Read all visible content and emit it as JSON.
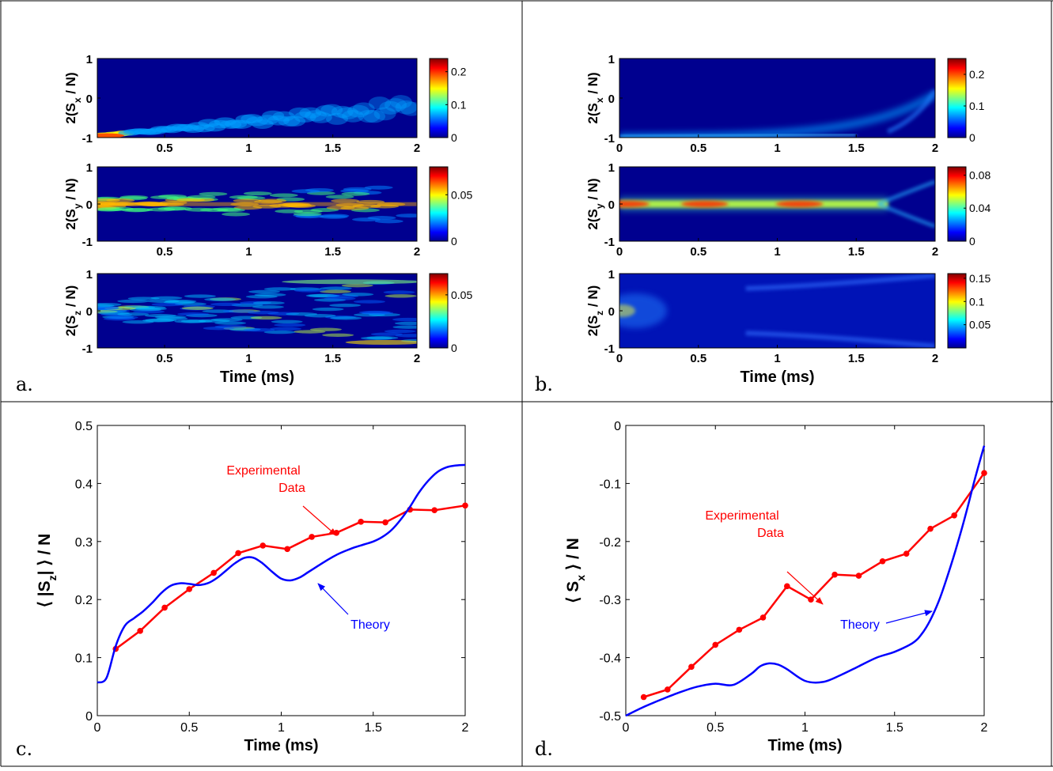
{
  "colors": {
    "border": "#000000",
    "experimental": "#ff0000",
    "theory": "#0000ff",
    "heatmap_bg": "#00008f",
    "colormap": [
      "#00008f",
      "#0000ff",
      "#00ffff",
      "#ffff00",
      "#ff0000",
      "#800000"
    ]
  },
  "panel_labels": {
    "a": "a.",
    "b": "b.",
    "c": "c.",
    "d": "d."
  },
  "chart_data": [
    {
      "id": "a",
      "type": "heatmap",
      "xlabel": "Time (ms)",
      "xlim": [
        0.1,
        2
      ],
      "xticks": [
        "0.5",
        "1",
        "1.5",
        "2"
      ],
      "xtick_values": [
        0.5,
        1,
        1.5,
        2
      ],
      "subplots": [
        {
          "ylabel": "2(S_x / N)",
          "ylabel_main": "2(S",
          "ylabel_sub": "x",
          "ylabel_tail": " / N)",
          "yticks": [
            "1",
            "0",
            "-1"
          ],
          "ylim": [
            -1,
            1
          ],
          "colorbar": {
            "range": [
              0,
              0.24
            ],
            "ticks": [
              "0.2",
              "0.1",
              "0"
            ],
            "tick_values": [
              0.2,
              0.1,
              0
            ]
          },
          "pattern": "spreading-from-bottom"
        },
        {
          "ylabel": "2(S_y / N)",
          "ylabel_main": "2(S",
          "ylabel_sub": "y",
          "ylabel_tail": " / N)",
          "yticks": [
            "1",
            "0",
            "-1"
          ],
          "ylim": [
            -1,
            1
          ],
          "colorbar": {
            "range": [
              0,
              0.08
            ],
            "ticks": [
              "0.05",
              "0"
            ],
            "tick_values": [
              0.05,
              0
            ]
          },
          "pattern": "band-at-zero-noisy"
        },
        {
          "ylabel": "2(S_z / N)",
          "ylabel_main": "2(S",
          "ylabel_sub": "z",
          "ylabel_tail": " / N)",
          "yticks": [
            "1",
            "0",
            "-1"
          ],
          "ylim": [
            -1,
            1
          ],
          "colorbar": {
            "range": [
              0,
              0.07
            ],
            "ticks": [
              "0.05",
              "0"
            ],
            "tick_values": [
              0.05,
              0
            ]
          },
          "pattern": "spreading-to-edges-noisy"
        }
      ]
    },
    {
      "id": "b",
      "type": "heatmap",
      "xlabel": "Time (ms)",
      "xlim": [
        0,
        2
      ],
      "xticks": [
        "0",
        "0.5",
        "1",
        "1.5",
        "2"
      ],
      "xtick_values": [
        0,
        0.5,
        1,
        1.5,
        2
      ],
      "subplots": [
        {
          "ylabel": "2(S_x / N)",
          "ylabel_main": "2(S",
          "ylabel_sub": "x",
          "ylabel_tail": " / N)",
          "yticks": [
            "1",
            "0",
            "-1"
          ],
          "ylim": [
            -1,
            1
          ],
          "colorbar": {
            "range": [
              0,
              0.25
            ],
            "ticks": [
              "0.2",
              "0.1",
              "0"
            ],
            "tick_values": [
              0.2,
              0.1,
              0
            ]
          },
          "pattern": "smooth-bottom-rising"
        },
        {
          "ylabel": "2(S_y / N)",
          "ylabel_main": "2(S",
          "ylabel_sub": "y",
          "ylabel_tail": " / N)",
          "yticks": [
            "1",
            "0",
            "-1"
          ],
          "ylim": [
            -1,
            1
          ],
          "colorbar": {
            "range": [
              0,
              0.09
            ],
            "ticks": [
              "0.08",
              "0.04",
              "0"
            ],
            "tick_values": [
              0.08,
              0.04,
              0
            ]
          },
          "pattern": "smooth-band-at-zero"
        },
        {
          "ylabel": "2(S_z / N)",
          "ylabel_main": "2(S",
          "ylabel_sub": "z",
          "ylabel_tail": " / N)",
          "yticks": [
            "1",
            "0",
            "-1"
          ],
          "ylim": [
            -1,
            1
          ],
          "colorbar": {
            "range": [
              0,
              0.16
            ],
            "ticks": [
              "0.15",
              "0.1",
              "0.05"
            ],
            "tick_values": [
              0.15,
              0.1,
              0.05
            ]
          },
          "pattern": "smooth-spread"
        }
      ]
    },
    {
      "id": "c",
      "type": "line",
      "xlabel": "Time (ms)",
      "ylabel": "⟨ |S_z| ⟩ / N",
      "ylabel_parts": {
        "open": "⟨ |S",
        "sub": "z",
        "close": "| ⟩ / N"
      },
      "xlim": [
        0,
        2
      ],
      "ylim": [
        0,
        0.5
      ],
      "xticks": [
        "0",
        "0.5",
        "1",
        "1.5",
        "2"
      ],
      "xtick_values": [
        0,
        0.5,
        1,
        1.5,
        2
      ],
      "yticks": [
        "0",
        "0.1",
        "0.2",
        "0.3",
        "0.4",
        "0.5"
      ],
      "ytick_values": [
        0,
        0.1,
        0.2,
        0.3,
        0.4,
        0.5
      ],
      "annotations": {
        "experimental_line1": "Experimental",
        "experimental_line2": "Data",
        "theory": "Theory"
      },
      "series": [
        {
          "name": "Experimental Data",
          "x": [
            0.1,
            0.233,
            0.366,
            0.5,
            0.633,
            0.766,
            0.9,
            1.033,
            1.166,
            1.3,
            1.433,
            1.566,
            1.7,
            1.833,
            2.0
          ],
          "y": [
            0.115,
            0.146,
            0.186,
            0.218,
            0.246,
            0.28,
            0.293,
            0.287,
            0.308,
            0.315,
            0.334,
            0.333,
            0.355,
            0.354,
            0.362
          ]
        },
        {
          "name": "Theory",
          "x": [
            0,
            0.05,
            0.1,
            0.15,
            0.2,
            0.25,
            0.3,
            0.35,
            0.4,
            0.45,
            0.5,
            0.55,
            0.6,
            0.65,
            0.7,
            0.75,
            0.8,
            0.85,
            0.9,
            0.95,
            1.0,
            1.05,
            1.1,
            1.15,
            1.2,
            1.25,
            1.3,
            1.35,
            1.4,
            1.45,
            1.5,
            1.55,
            1.6,
            1.65,
            1.7,
            1.75,
            1.8,
            1.85,
            1.9,
            1.95,
            2.0
          ],
          "y": [
            0.057,
            0.065,
            0.12,
            0.155,
            0.168,
            0.18,
            0.195,
            0.212,
            0.224,
            0.228,
            0.227,
            0.225,
            0.228,
            0.237,
            0.25,
            0.263,
            0.272,
            0.272,
            0.262,
            0.248,
            0.236,
            0.233,
            0.238,
            0.248,
            0.258,
            0.268,
            0.277,
            0.284,
            0.29,
            0.295,
            0.3,
            0.308,
            0.32,
            0.338,
            0.36,
            0.385,
            0.405,
            0.42,
            0.428,
            0.431,
            0.432
          ]
        }
      ]
    },
    {
      "id": "d",
      "type": "line",
      "xlabel": "Time (ms)",
      "ylabel": "⟨ S_x ⟩ / N",
      "ylabel_parts": {
        "open": "⟨ S",
        "sub": "x",
        "close": " ⟩ / N"
      },
      "xlim": [
        0,
        2
      ],
      "ylim": [
        -0.5,
        0
      ],
      "xticks": [
        "0",
        "0.5",
        "1",
        "1.5",
        "2"
      ],
      "xtick_values": [
        0,
        0.5,
        1,
        1.5,
        2
      ],
      "yticks": [
        "0",
        "-0.1",
        "-0.2",
        "-0.3",
        "-0.4",
        "-0.5"
      ],
      "ytick_values": [
        0,
        -0.1,
        -0.2,
        -0.3,
        -0.4,
        -0.5
      ],
      "annotations": {
        "experimental_line1": "Experimental",
        "experimental_line2": "Data",
        "theory": "Theory"
      },
      "series": [
        {
          "name": "Experimental Data",
          "x": [
            0.1,
            0.233,
            0.366,
            0.5,
            0.633,
            0.766,
            0.9,
            1.033,
            1.166,
            1.3,
            1.433,
            1.566,
            1.7,
            1.833,
            2.0
          ],
          "y": [
            -0.468,
            -0.455,
            -0.416,
            -0.378,
            -0.352,
            -0.331,
            -0.277,
            -0.3,
            -0.257,
            -0.259,
            -0.234,
            -0.221,
            -0.178,
            -0.155,
            -0.082
          ]
        },
        {
          "name": "Theory",
          "x": [
            0,
            0.1,
            0.2,
            0.3,
            0.4,
            0.5,
            0.6,
            0.7,
            0.75,
            0.8,
            0.85,
            0.9,
            1.0,
            1.1,
            1.2,
            1.3,
            1.4,
            1.5,
            1.6,
            1.65,
            1.7,
            1.75,
            1.8,
            1.85,
            1.9,
            1.95,
            2.0
          ],
          "y": [
            -0.5,
            -0.485,
            -0.472,
            -0.46,
            -0.45,
            -0.445,
            -0.447,
            -0.428,
            -0.415,
            -0.41,
            -0.412,
            -0.42,
            -0.44,
            -0.442,
            -0.43,
            -0.415,
            -0.4,
            -0.39,
            -0.375,
            -0.36,
            -0.335,
            -0.3,
            -0.255,
            -0.205,
            -0.15,
            -0.09,
            -0.035
          ]
        }
      ]
    }
  ]
}
